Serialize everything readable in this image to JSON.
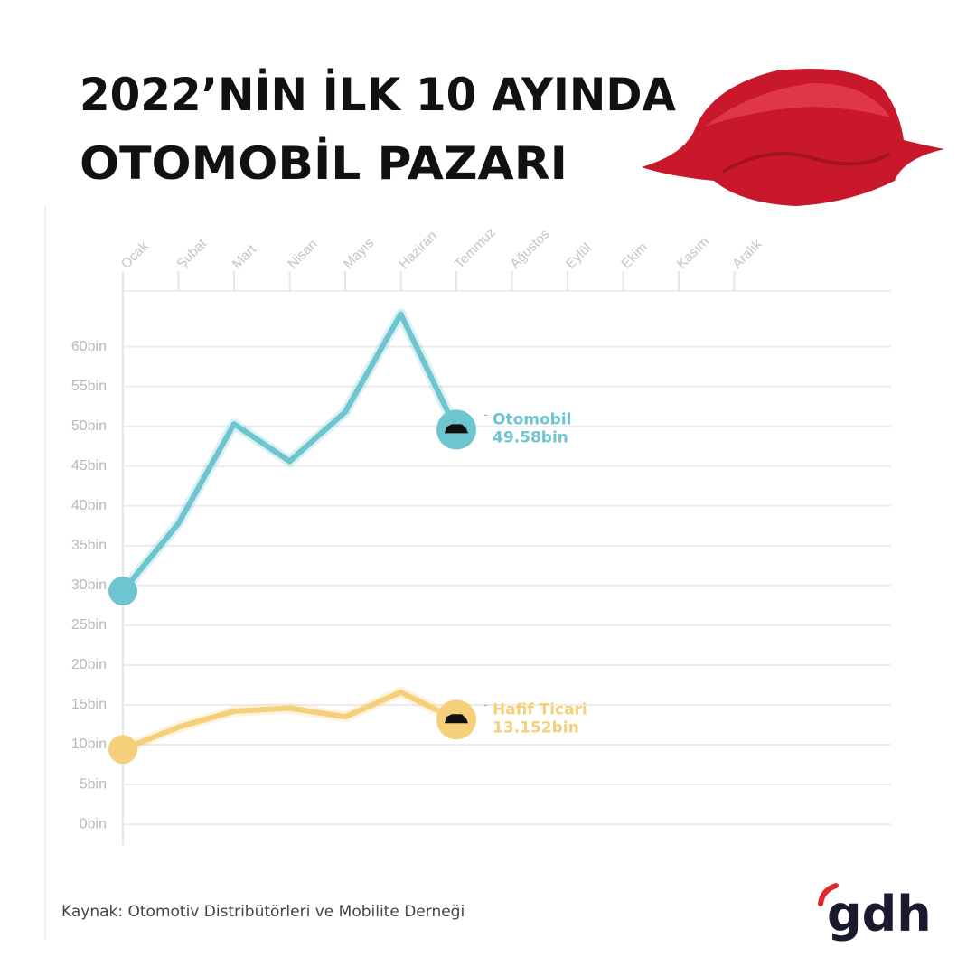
{
  "chart_data": {
    "type": "line",
    "title": [
      "2022’NİN İLK 10 AYINDA",
      "OTOMOBİL PAZARI"
    ],
    "categories": [
      "Ocak",
      "Şubat",
      "Mart",
      "Nisan",
      "Mayıs",
      "Haziran",
      "Temmuz",
      "Ağustos",
      "Eylül",
      "Ekim",
      "Kasım",
      "Aralık"
    ],
    "series": [
      {
        "name": "Otomobil",
        "color": "#6cc5cf",
        "values": [
          29.3,
          37.8,
          50.3,
          45.6,
          51.8,
          64.1,
          49.58,
          null,
          null,
          null,
          null,
          null
        ],
        "value_labels": [
          null,
          null,
          null,
          null,
          null,
          null,
          "49.58bin",
          null,
          null,
          null,
          null,
          null
        ]
      },
      {
        "name": "Hafif Ticari",
        "color": "#f6cf7a",
        "values": [
          9.4,
          12.2,
          14.2,
          14.6,
          13.5,
          16.6,
          13.152,
          null,
          null,
          null,
          null,
          null
        ],
        "value_labels": [
          null,
          null,
          null,
          null,
          null,
          null,
          "13.152bin",
          null,
          null,
          null,
          null,
          null
        ]
      }
    ],
    "ylim": [
      -2.6,
      67
    ],
    "yticks": [
      {
        "value": 0,
        "label": "0bin"
      },
      {
        "value": 5,
        "label": "5bin"
      },
      {
        "value": 10,
        "label": "10bin"
      },
      {
        "value": 15,
        "label": "15bin"
      },
      {
        "value": 20,
        "label": "20bin"
      },
      {
        "value": 25,
        "label": "25bin"
      },
      {
        "value": 30,
        "label": "30bin"
      },
      {
        "value": 35,
        "label": "35bin"
      },
      {
        "value": 40,
        "label": "40bin"
      },
      {
        "value": 45,
        "label": "45bin"
      },
      {
        "value": 50,
        "label": "50bin"
      },
      {
        "value": 55,
        "label": "55bin"
      },
      {
        "value": 60,
        "label": "60bin"
      }
    ],
    "grid": true,
    "source": "Kaynak: Otomotiv Distribütörleri ve Mobilite Derneği"
  },
  "logo": "gdh"
}
